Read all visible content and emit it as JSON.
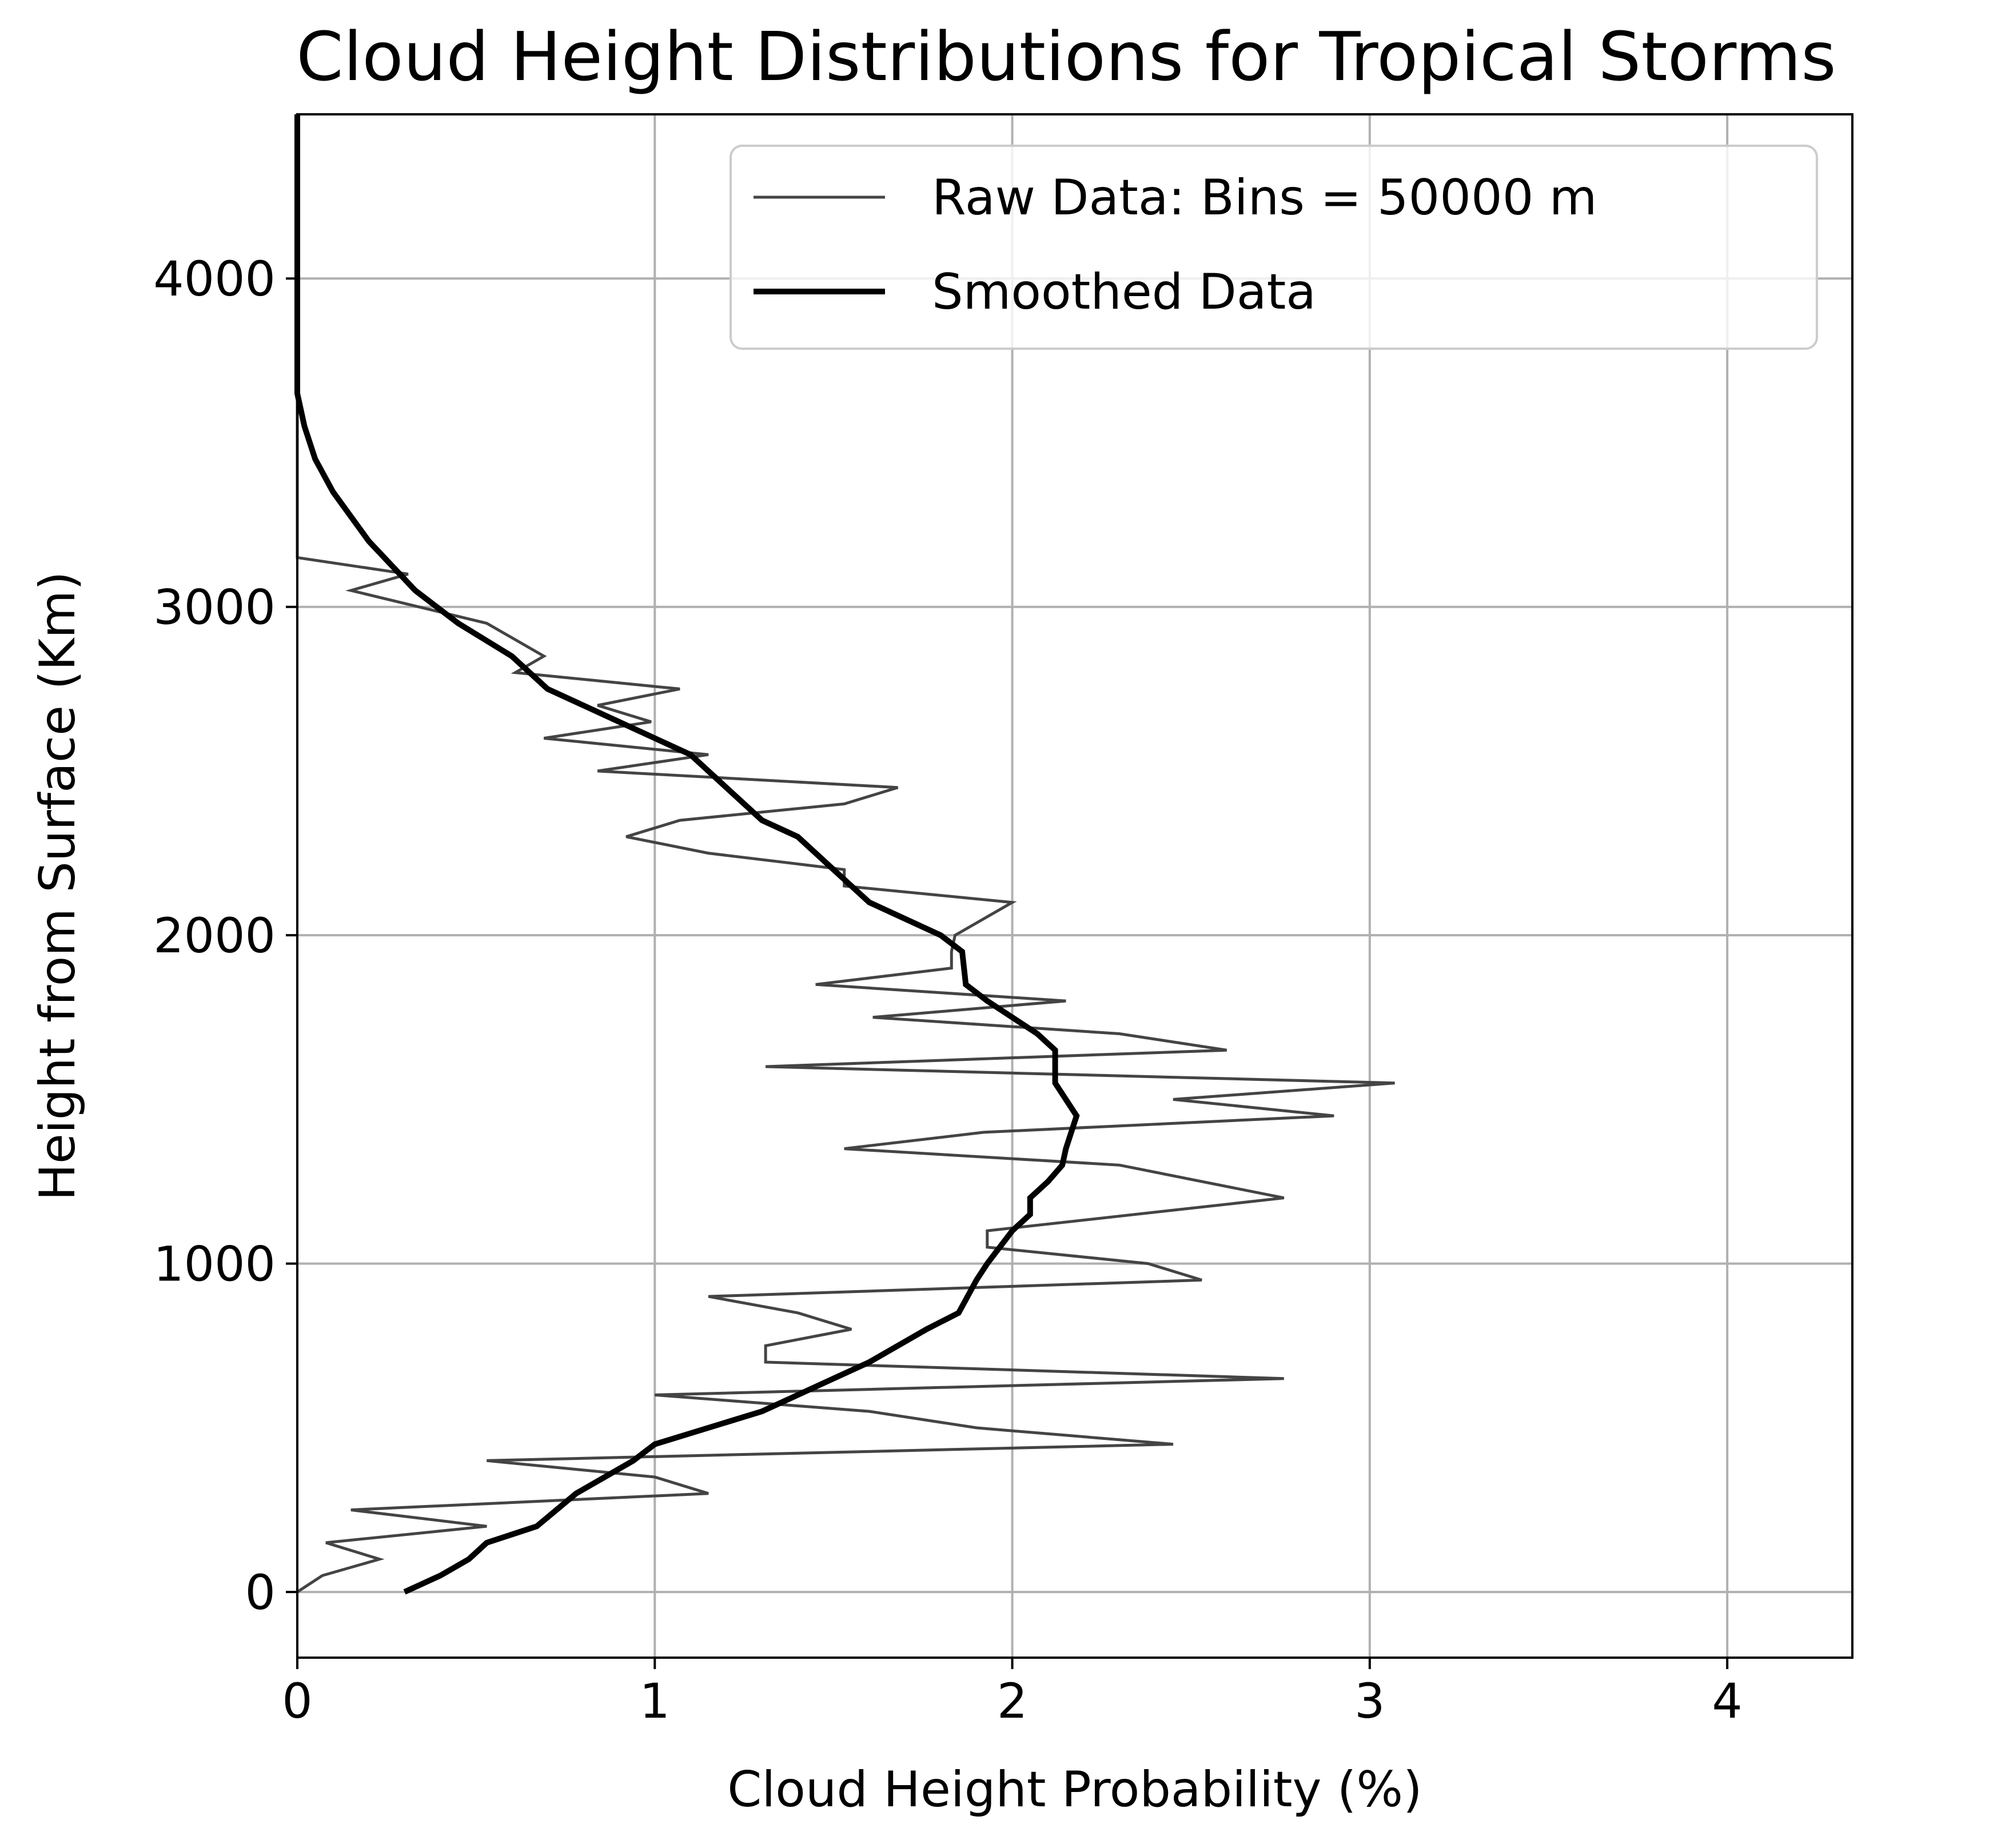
{
  "chart_data": {
    "type": "line",
    "title": "Cloud Height Distributions for Tropical Storms",
    "xlabel": "Cloud Height Probability (%)",
    "ylabel": "Height from Surface (Km)",
    "xlim": [
      0,
      4.35
    ],
    "ylim": [
      -200,
      4500
    ],
    "xticks": [
      0,
      1,
      2,
      3,
      4
    ],
    "xtick_labels": [
      "0",
      "1",
      "2",
      "3",
      "4"
    ],
    "yticks": [
      0,
      1000,
      2000,
      3000,
      4000
    ],
    "ytick_labels": [
      "0",
      "1000",
      "2000",
      "3000",
      "4000"
    ],
    "grid": true,
    "legend_position": "top-right",
    "colors": {
      "raw": "#444444",
      "smoothed": "#000000",
      "grid": "#b0b0b0"
    },
    "series": [
      {
        "name": "Raw Data: Bins = 50000 m",
        "style": "thin",
        "points": [
          [
            0.0,
            0
          ],
          [
            0.07,
            50
          ],
          [
            0.23,
            100
          ],
          [
            0.08,
            150
          ],
          [
            0.53,
            200
          ],
          [
            0.15,
            250
          ],
          [
            1.15,
            300
          ],
          [
            1.0,
            350
          ],
          [
            0.53,
            400
          ],
          [
            2.45,
            450
          ],
          [
            1.9,
            500
          ],
          [
            1.6,
            550
          ],
          [
            1.0,
            600
          ],
          [
            2.76,
            650
          ],
          [
            1.31,
            700
          ],
          [
            1.31,
            750
          ],
          [
            1.55,
            800
          ],
          [
            1.4,
            850
          ],
          [
            1.15,
            900
          ],
          [
            2.53,
            950
          ],
          [
            2.38,
            1000
          ],
          [
            1.93,
            1050
          ],
          [
            1.93,
            1100
          ],
          [
            2.76,
            1200
          ],
          [
            2.3,
            1300
          ],
          [
            1.53,
            1350
          ],
          [
            1.92,
            1400
          ],
          [
            2.9,
            1450
          ],
          [
            2.45,
            1500
          ],
          [
            3.07,
            1550
          ],
          [
            1.31,
            1600
          ],
          [
            2.6,
            1650
          ],
          [
            2.3,
            1700
          ],
          [
            1.61,
            1750
          ],
          [
            2.15,
            1800
          ],
          [
            1.45,
            1850
          ],
          [
            1.83,
            1900
          ],
          [
            1.83,
            1950
          ],
          [
            1.84,
            2000
          ],
          [
            2.0,
            2100
          ],
          [
            1.53,
            2150
          ],
          [
            1.53,
            2200
          ],
          [
            1.15,
            2250
          ],
          [
            0.92,
            2300
          ],
          [
            1.07,
            2350
          ],
          [
            1.53,
            2400
          ],
          [
            1.68,
            2450
          ],
          [
            0.84,
            2500
          ],
          [
            1.15,
            2550
          ],
          [
            0.69,
            2600
          ],
          [
            0.99,
            2650
          ],
          [
            0.84,
            2700
          ],
          [
            1.07,
            2750
          ],
          [
            0.61,
            2800
          ],
          [
            0.69,
            2850
          ],
          [
            0.53,
            2950
          ],
          [
            0.15,
            3050
          ],
          [
            0.31,
            3100
          ],
          [
            0.0,
            3150
          ],
          [
            0.0,
            4500
          ]
        ]
      },
      {
        "name": "Smoothed Data",
        "style": "thick",
        "points": [
          [
            0.3,
            0
          ],
          [
            0.4,
            50
          ],
          [
            0.48,
            100
          ],
          [
            0.53,
            150
          ],
          [
            0.67,
            200
          ],
          [
            0.78,
            300
          ],
          [
            0.94,
            400
          ],
          [
            1.0,
            450
          ],
          [
            1.3,
            550
          ],
          [
            1.5,
            650
          ],
          [
            1.6,
            700
          ],
          [
            1.76,
            800
          ],
          [
            1.85,
            850
          ],
          [
            1.9,
            950
          ],
          [
            1.93,
            1000
          ],
          [
            2.0,
            1100
          ],
          [
            2.05,
            1150
          ],
          [
            2.05,
            1200
          ],
          [
            2.1,
            1250
          ],
          [
            2.14,
            1300
          ],
          [
            2.15,
            1350
          ],
          [
            2.18,
            1450
          ],
          [
            2.12,
            1550
          ],
          [
            2.12,
            1650
          ],
          [
            2.07,
            1700
          ],
          [
            1.93,
            1800
          ],
          [
            1.87,
            1850
          ],
          [
            1.86,
            1950
          ],
          [
            1.8,
            2000
          ],
          [
            1.7,
            2050
          ],
          [
            1.6,
            2100
          ],
          [
            1.55,
            2150
          ],
          [
            1.5,
            2200
          ],
          [
            1.45,
            2250
          ],
          [
            1.4,
            2300
          ],
          [
            1.3,
            2350
          ],
          [
            1.2,
            2450
          ],
          [
            1.1,
            2550
          ],
          [
            1.0,
            2600
          ],
          [
            0.8,
            2700
          ],
          [
            0.7,
            2750
          ],
          [
            0.6,
            2850
          ],
          [
            0.45,
            2950
          ],
          [
            0.33,
            3050
          ],
          [
            0.2,
            3200
          ],
          [
            0.1,
            3350
          ],
          [
            0.05,
            3450
          ],
          [
            0.02,
            3550
          ],
          [
            0.0,
            3650
          ],
          [
            0.0,
            4500
          ]
        ]
      }
    ]
  }
}
